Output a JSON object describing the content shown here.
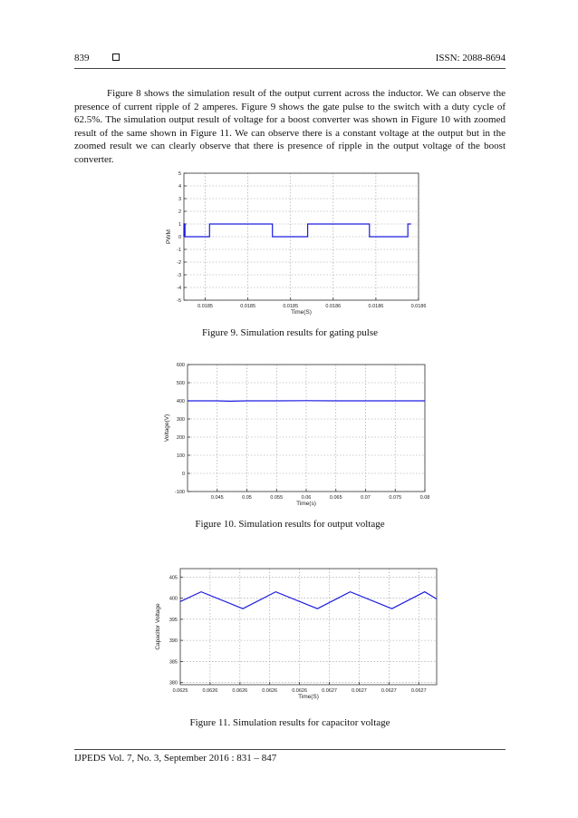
{
  "header": {
    "page_number": "839",
    "issn": "ISSN: 2088-8694"
  },
  "body_paragraph": "Figure 8 shows the simulation result of the output current across the inductor. We can observe the presence of current ripple of 2 amperes. Figure 9 shows the gate pulse to the switch with a duty cycle of 62.5%. The simulation output result of voltage for a boost converter was shown in Figure 10 with zoomed result of the same shown in Figure 11. We can observe there is a constant voltage at the output but in the zoomed result we can clearly observe that there is presence of ripple in the output voltage of the boost converter.",
  "figures": [
    {
      "caption": "Figure 9. Simulation results for gating pulse"
    },
    {
      "caption": "Figure 10. Simulation results for output voltage"
    },
    {
      "caption": "Figure 11. Simulation results for capacitor voltage"
    }
  ],
  "footer": {
    "journal": "IJPEDS Vol. 7, No. 3, September 2016 : 831 – 847"
  },
  "colors": {
    "trace": "#1c1ce0",
    "grid": "#9a9a9a",
    "axis": "#333333"
  },
  "chart_data": [
    {
      "type": "line",
      "title": "",
      "xlabel": "Time(S)",
      "ylabel": "PWM",
      "x_range": [
        0,
        11
      ],
      "ylim": [
        -5,
        5
      ],
      "x_ticks": [
        1,
        3,
        5,
        7,
        9,
        11
      ],
      "x_tick_labels": [
        "0.0185",
        "0.0185",
        "0.0185",
        "0.0186",
        "0.0186",
        "0.0186"
      ],
      "y_ticks": [
        -5,
        -4,
        -3,
        -2,
        -1,
        0,
        1,
        2,
        3,
        4,
        5
      ],
      "y_tick_labels": [
        "-5",
        "-4",
        "-3",
        "-2",
        "-1",
        "0",
        "1",
        "2",
        "3",
        "4",
        "5"
      ],
      "grid": true,
      "series": [
        {
          "x": [
            0,
            0,
            0.05,
            0.05,
            1.2,
            1.2,
            4.15,
            4.15,
            5.8,
            5.8,
            8.7,
            8.7,
            10.5,
            10.5,
            10.65
          ],
          "y": [
            0,
            1,
            1,
            0,
            0,
            1,
            1,
            0,
            0,
            1,
            1,
            0,
            0,
            1,
            1
          ]
        }
      ]
    },
    {
      "type": "line",
      "title": "",
      "xlabel": "Time(s)",
      "ylabel": "Voltage(V)",
      "x_range": [
        0.04,
        0.08
      ],
      "ylim": [
        -100,
        600
      ],
      "x_ticks": [
        0.045,
        0.05,
        0.055,
        0.06,
        0.065,
        0.07,
        0.075,
        0.08
      ],
      "x_tick_labels": [
        "0.045",
        "0.05",
        "0.055",
        "0.06",
        "0.065",
        "0.07",
        "0.075",
        "0.08"
      ],
      "y_ticks": [
        -100,
        0,
        100,
        200,
        300,
        400,
        500,
        600
      ],
      "y_tick_labels": [
        "-100",
        "0",
        "100",
        "200",
        "300",
        "400",
        "500",
        "600"
      ],
      "grid": true,
      "series": [
        {
          "x": [
            0.04,
            0.045,
            0.047,
            0.05,
            0.055,
            0.06,
            0.065,
            0.07,
            0.075,
            0.08
          ],
          "y": [
            400,
            400,
            398,
            400,
            400,
            401,
            400,
            400,
            400,
            400
          ]
        }
      ]
    },
    {
      "type": "line",
      "title": "",
      "xlabel": "Time(S)",
      "ylabel": "Capacitor Voltage",
      "x_range": [
        0,
        8.6
      ],
      "ylim": [
        379.5,
        407
      ],
      "x_ticks": [
        0,
        1,
        2,
        3,
        4,
        5,
        6,
        7,
        8
      ],
      "x_tick_labels": [
        "0.0625",
        "0.0626",
        "0.0626",
        "0.0626",
        "0.0626",
        "0.0627",
        "0.0627",
        "0.0627",
        "0.0627"
      ],
      "y_ticks": [
        380,
        385,
        390,
        395,
        400,
        405
      ],
      "y_tick_labels": [
        "380",
        "385",
        "390",
        "395",
        "400",
        "405"
      ],
      "grid": true,
      "series": [
        {
          "x": [
            0,
            0.7,
            2.1,
            3.2,
            4.6,
            5.7,
            7.1,
            8.2,
            8.6
          ],
          "y": [
            399.2,
            401.5,
            397.5,
            401.5,
            397.5,
            401.5,
            397.5,
            401.5,
            399.8
          ]
        }
      ]
    }
  ]
}
